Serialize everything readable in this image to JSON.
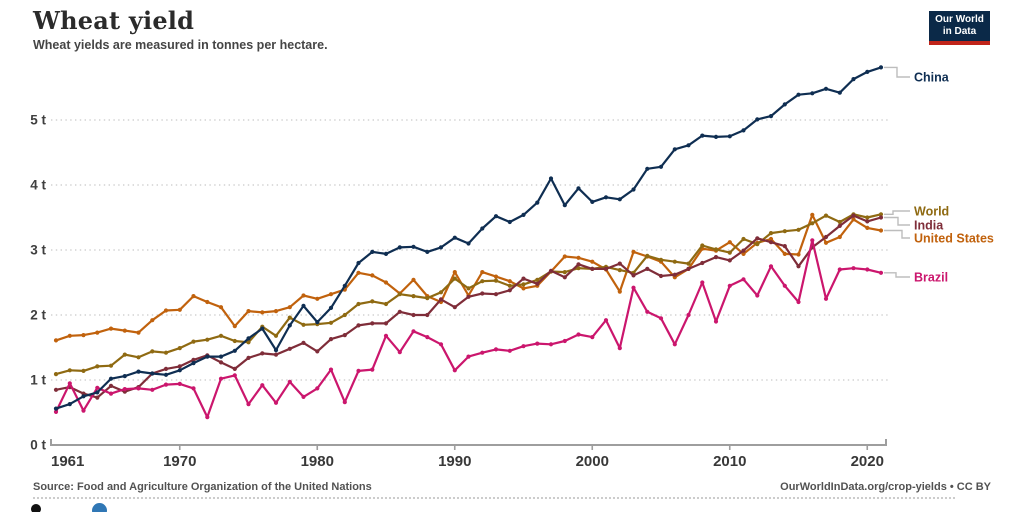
{
  "header": {
    "title": "Wheat yield",
    "subtitle": "Wheat yields are measured in tonnes per hectare."
  },
  "logo": {
    "line1": "Our World",
    "line2": "in Data",
    "bg": "#0b2948",
    "accent": "#c0241a"
  },
  "footer": {
    "source": "Source: Food and Agriculture Organization of the United Nations",
    "link": "OurWorldInData.org/crop-yields • CC BY"
  },
  "timeline": {
    "play_color": "#111111",
    "handle_color": "#3077b5"
  },
  "chart_data": {
    "type": "line",
    "title": "Wheat yield",
    "xlabel": "",
    "ylabel": "tonnes per hectare",
    "xlim": [
      1961,
      2021
    ],
    "ylim": [
      0,
      5.9
    ],
    "grid": "dotted-horizontal",
    "legend_position": "right-of-lines",
    "y_ticks": [
      {
        "value": 0,
        "label": "0 t"
      },
      {
        "value": 1,
        "label": "1 t"
      },
      {
        "value": 2,
        "label": "2 t"
      },
      {
        "value": 3,
        "label": "3 t"
      },
      {
        "value": 4,
        "label": "4 t"
      },
      {
        "value": 5,
        "label": "5 t"
      }
    ],
    "x_ticks": [
      {
        "value": 1961,
        "label": "1961"
      },
      {
        "value": 1970,
        "label": "1970"
      },
      {
        "value": 1980,
        "label": "1980"
      },
      {
        "value": 1990,
        "label": "1990"
      },
      {
        "value": 2000,
        "label": "2000"
      },
      {
        "value": 2010,
        "label": "2010"
      },
      {
        "value": 2020,
        "label": "2020"
      }
    ],
    "x": [
      1961,
      1962,
      1963,
      1964,
      1965,
      1966,
      1967,
      1968,
      1969,
      1970,
      1971,
      1972,
      1973,
      1974,
      1975,
      1976,
      1977,
      1978,
      1979,
      1980,
      1981,
      1982,
      1983,
      1984,
      1985,
      1986,
      1987,
      1988,
      1989,
      1990,
      1991,
      1992,
      1993,
      1994,
      1995,
      1996,
      1997,
      1998,
      1999,
      2000,
      2001,
      2002,
      2003,
      2004,
      2005,
      2006,
      2007,
      2008,
      2009,
      2010,
      2011,
      2012,
      2013,
      2014,
      2015,
      2016,
      2017,
      2018,
      2019,
      2020,
      2021
    ],
    "series": [
      {
        "name": "China",
        "color": "#0f2e52",
        "values": [
          0.56,
          0.63,
          0.75,
          0.81,
          1.02,
          1.06,
          1.13,
          1.1,
          1.08,
          1.15,
          1.26,
          1.36,
          1.36,
          1.45,
          1.64,
          1.79,
          1.46,
          1.84,
          2.14,
          1.89,
          2.11,
          2.45,
          2.8,
          2.97,
          2.94,
          3.04,
          3.05,
          2.97,
          3.04,
          3.19,
          3.1,
          3.33,
          3.52,
          3.43,
          3.54,
          3.73,
          4.1,
          3.69,
          3.95,
          3.74,
          3.81,
          3.78,
          3.93,
          4.25,
          4.28,
          4.55,
          4.61,
          4.76,
          4.74,
          4.75,
          4.84,
          5.01,
          5.06,
          5.24,
          5.39,
          5.41,
          5.48,
          5.42,
          5.63,
          5.74,
          5.81
        ]
      },
      {
        "name": "World",
        "color": "#8f6a12",
        "values": [
          1.09,
          1.15,
          1.14,
          1.21,
          1.22,
          1.39,
          1.35,
          1.44,
          1.42,
          1.49,
          1.59,
          1.62,
          1.68,
          1.6,
          1.58,
          1.82,
          1.68,
          1.96,
          1.85,
          1.86,
          1.88,
          2.0,
          2.17,
          2.21,
          2.17,
          2.32,
          2.29,
          2.26,
          2.35,
          2.56,
          2.41,
          2.52,
          2.53,
          2.45,
          2.47,
          2.54,
          2.67,
          2.66,
          2.72,
          2.71,
          2.74,
          2.69,
          2.65,
          2.91,
          2.85,
          2.82,
          2.79,
          3.07,
          3.01,
          2.96,
          3.17,
          3.09,
          3.26,
          3.29,
          3.31,
          3.41,
          3.53,
          3.43,
          3.55,
          3.5,
          3.55
        ]
      },
      {
        "name": "India",
        "color": "#7f2d39",
        "values": [
          0.85,
          0.89,
          0.79,
          0.73,
          0.91,
          0.82,
          0.89,
          1.1,
          1.17,
          1.21,
          1.31,
          1.38,
          1.27,
          1.17,
          1.34,
          1.41,
          1.39,
          1.48,
          1.57,
          1.44,
          1.63,
          1.69,
          1.84,
          1.87,
          1.87,
          2.05,
          2.0,
          2.0,
          2.24,
          2.12,
          2.28,
          2.33,
          2.32,
          2.38,
          2.56,
          2.48,
          2.68,
          2.58,
          2.78,
          2.71,
          2.71,
          2.79,
          2.61,
          2.71,
          2.6,
          2.62,
          2.71,
          2.8,
          2.89,
          2.84,
          2.99,
          3.18,
          3.12,
          3.06,
          2.75,
          3.04,
          3.2,
          3.37,
          3.53,
          3.44,
          3.5
        ]
      },
      {
        "name": "United States",
        "color": "#c1620d",
        "values": [
          1.61,
          1.68,
          1.69,
          1.73,
          1.79,
          1.76,
          1.73,
          1.92,
          2.07,
          2.08,
          2.29,
          2.2,
          2.12,
          1.83,
          2.06,
          2.04,
          2.06,
          2.12,
          2.3,
          2.25,
          2.32,
          2.39,
          2.65,
          2.61,
          2.5,
          2.33,
          2.54,
          2.29,
          2.2,
          2.66,
          2.3,
          2.66,
          2.59,
          2.52,
          2.41,
          2.45,
          2.67,
          2.9,
          2.88,
          2.82,
          2.7,
          2.36,
          2.97,
          2.9,
          2.82,
          2.58,
          2.71,
          3.02,
          2.99,
          3.12,
          2.94,
          3.11,
          3.17,
          2.94,
          2.93,
          3.54,
          3.11,
          3.2,
          3.47,
          3.34,
          3.3
        ]
      },
      {
        "name": "Brazil",
        "color": "#cb166d",
        "values": [
          0.51,
          0.95,
          0.53,
          0.88,
          0.79,
          0.86,
          0.87,
          0.85,
          0.93,
          0.94,
          0.87,
          0.43,
          1.02,
          1.07,
          0.63,
          0.92,
          0.65,
          0.97,
          0.74,
          0.87,
          1.16,
          0.66,
          1.14,
          1.16,
          1.68,
          1.43,
          1.75,
          1.66,
          1.55,
          1.15,
          1.36,
          1.42,
          1.47,
          1.45,
          1.52,
          1.56,
          1.55,
          1.6,
          1.7,
          1.66,
          1.92,
          1.49,
          2.42,
          2.05,
          1.95,
          1.55,
          2.0,
          2.5,
          1.9,
          2.45,
          2.55,
          2.3,
          2.75,
          2.45,
          2.2,
          3.15,
          2.25,
          2.7,
          2.72,
          2.7,
          2.65
        ]
      }
    ]
  }
}
